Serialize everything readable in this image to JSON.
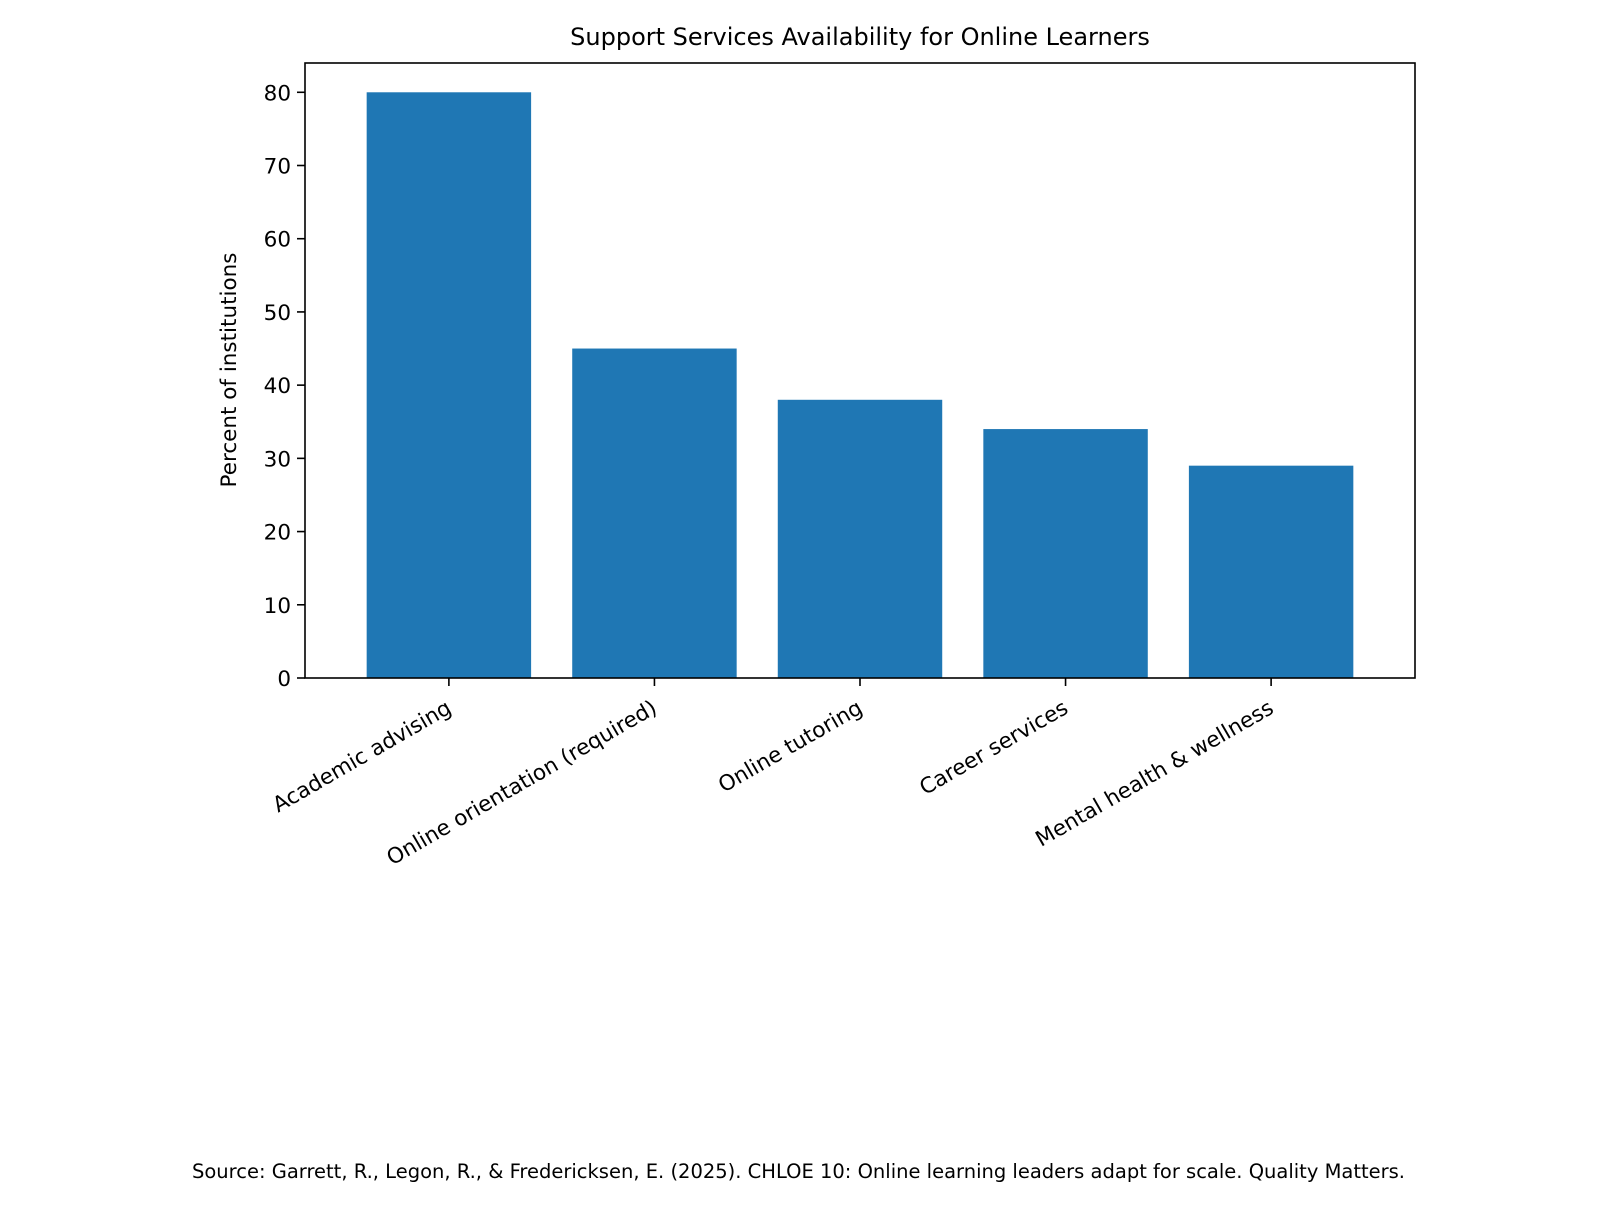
{
  "chart_data": {
    "type": "bar",
    "title": "Support Services Availability for Online Learners",
    "xlabel": "",
    "ylabel": "Percent of institutions",
    "categories": [
      "Academic advising",
      "Online orientation (required)",
      "Online tutoring",
      "Career services",
      "Mental health & wellness"
    ],
    "values": [
      80,
      45,
      38,
      34,
      29
    ],
    "yticks": [
      "0",
      "10",
      "20",
      "30",
      "40",
      "50",
      "60",
      "70",
      "80"
    ],
    "ylim": [
      0,
      84
    ],
    "bar_color": "#1f77b4",
    "grid": false,
    "legend": "none"
  },
  "source_note": "Source: Garrett, R., Legon, R., & Fredericksen, E. (2025). CHLOE 10: Online learning leaders adapt for scale. Quality Matters."
}
